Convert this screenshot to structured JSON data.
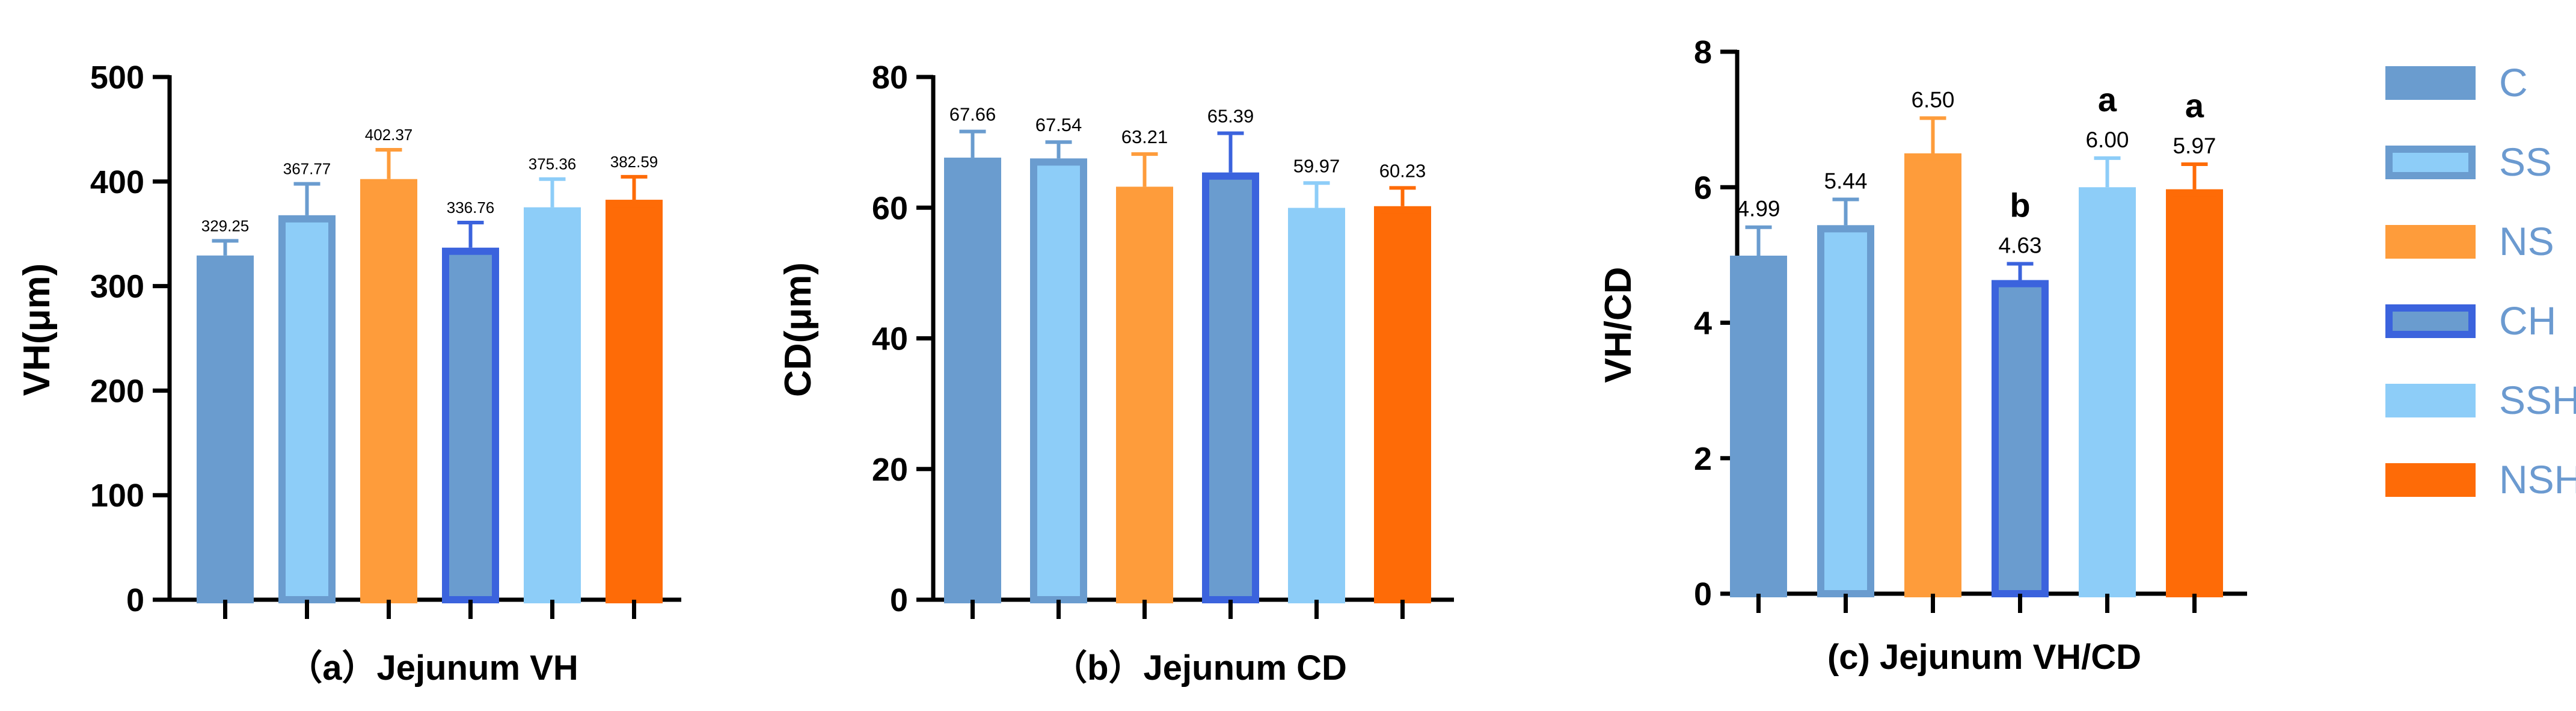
{
  "chart_data": [
    {
      "type": "bar",
      "title": "（a）Jejunum VH",
      "ylabel": "VH(μm)",
      "ylim": [
        0,
        500
      ],
      "yticks": [
        0,
        100,
        200,
        300,
        400,
        500
      ],
      "categories": [
        "C",
        "SS",
        "NS",
        "CH",
        "SSH",
        "NSH"
      ],
      "values": [
        329.25,
        367.77,
        402.37,
        336.76,
        375.36,
        382.59
      ],
      "errors": [
        14,
        30,
        28,
        24,
        27,
        22
      ],
      "labels": [
        "329.25",
        "367.77",
        "402.37",
        "336.76",
        "375.36",
        "382.59"
      ],
      "significance": [
        "",
        "",
        "",
        "",
        "",
        ""
      ]
    },
    {
      "type": "bar",
      "title": "（b）Jejunum CD",
      "ylabel": "CD(μm)",
      "ylim": [
        0,
        80
      ],
      "yticks": [
        0,
        20,
        40,
        60,
        80
      ],
      "categories": [
        "C",
        "SS",
        "NS",
        "CH",
        "SSH",
        "NSH"
      ],
      "values": [
        67.66,
        67.54,
        63.21,
        65.39,
        59.97,
        60.23
      ],
      "errors": [
        4.0,
        2.5,
        5.0,
        6.0,
        3.8,
        2.8
      ],
      "labels": [
        "67.66",
        "67.54",
        "63.21",
        "65.39",
        "59.97",
        "60.23"
      ],
      "significance": [
        "",
        "",
        "",
        "",
        "",
        ""
      ]
    },
    {
      "type": "bar",
      "title": "(c) Jejunum VH/CD",
      "ylabel": "VH/CD",
      "ylim": [
        0,
        8
      ],
      "yticks": [
        0,
        2,
        4,
        6,
        8
      ],
      "categories": [
        "C",
        "SS",
        "NS",
        "CH",
        "SSH",
        "NSH"
      ],
      "values": [
        4.99,
        5.44,
        6.5,
        4.63,
        6.0,
        5.97
      ],
      "errors": [
        0.42,
        0.38,
        0.52,
        0.24,
        0.43,
        0.37
      ],
      "labels": [
        "4.99",
        "5.44",
        "6.50",
        "4.63",
        "6.00",
        "5.97"
      ],
      "significance": [
        "",
        "",
        "",
        "b",
        "a",
        "a"
      ]
    }
  ],
  "legend": {
    "position": "right",
    "items": [
      {
        "name": "C",
        "fill": "#6a9ccf",
        "stroke": "#6a9ccf"
      },
      {
        "name": "SS",
        "fill": "#8dcdf8",
        "stroke": "#6a9ccf"
      },
      {
        "name": "NS",
        "fill": "#fe9c3b",
        "stroke": "#fe9c3b"
      },
      {
        "name": "CH",
        "fill": "#6a9ccf",
        "stroke": "#3b63dd"
      },
      {
        "name": "SSH",
        "fill": "#8dcdf8",
        "stroke": "#8dcdf8"
      },
      {
        "name": "NSH",
        "fill": "#fe6b07",
        "stroke": "#fe6b07"
      }
    ]
  }
}
